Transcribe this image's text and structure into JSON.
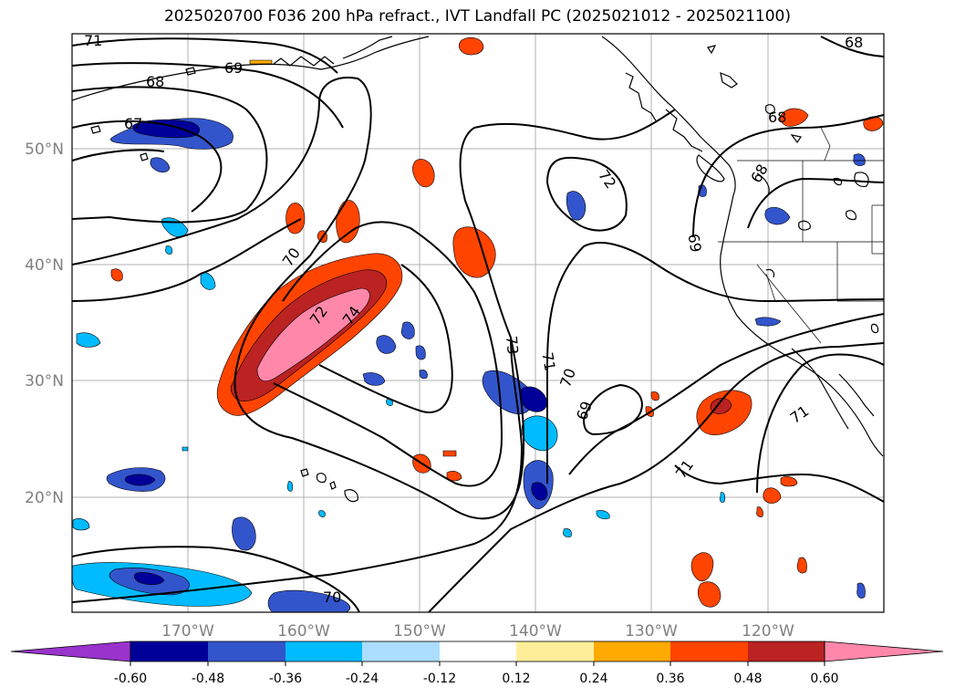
{
  "title": "2025020700 F036 200 hPa refract., IVT Landfall PC (2025021012 - 2025021100)",
  "map": {
    "lon_labels": [
      "170°W",
      "160°W",
      "150°W",
      "140°W",
      "130°W",
      "120°W"
    ],
    "lat_labels": [
      "50°N",
      "40°N",
      "30°N",
      "20°N"
    ],
    "contour_labels": [
      "71",
      "69",
      "68",
      "67",
      "70",
      "72",
      "74",
      "73",
      "71",
      "70",
      "69",
      "72",
      "69",
      "68",
      "68",
      "71",
      "71",
      "70",
      "68"
    ]
  },
  "colorbar": {
    "tick_labels": [
      "-0.60",
      "-0.48",
      "-0.36",
      "-0.24",
      "-0.12",
      "0.12",
      "0.24",
      "0.36",
      "0.48",
      "0.60"
    ],
    "colors": [
      "#9933cc",
      "#000099",
      "#3355cc",
      "#00bbff",
      "#aaddff",
      "#ffffff",
      "#ffee99",
      "#ffaa00",
      "#ff4400",
      "#bb2222",
      "#ff88aa"
    ]
  }
}
